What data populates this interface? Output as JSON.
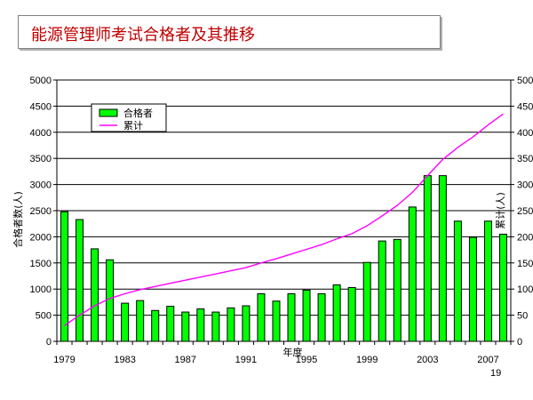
{
  "slide": {
    "title": "能源管理师考试合格者及其推移",
    "page_number": "19"
  },
  "colors": {
    "bar_fill": "#00ff00",
    "bar_stroke": "#000000",
    "line": "#ff00ff",
    "title_text": "#c00000"
  },
  "chart_data": {
    "type": "bar",
    "title": "",
    "xlabel": "年度",
    "ylabel": "合格者数(人)",
    "y2label": "累计(人)",
    "ylim": [
      0,
      5000
    ],
    "y2lim": [
      0,
      500
    ],
    "yticks": [
      0,
      500,
      1000,
      1500,
      2000,
      2500,
      3000,
      3500,
      4000,
      4500,
      5000
    ],
    "y2ticks": [
      0,
      50,
      100,
      150,
      200,
      250,
      300,
      350,
      400,
      450,
      500
    ],
    "grid": true,
    "legend_position": "top-left",
    "categories": [
      1979,
      1980,
      1981,
      1982,
      1983,
      1984,
      1985,
      1986,
      1987,
      1988,
      1989,
      1990,
      1991,
      1992,
      1993,
      1994,
      1995,
      1996,
      1997,
      1998,
      1999,
      2000,
      2001,
      2002,
      2003,
      2004,
      2005,
      2006,
      2007,
      2008
    ],
    "x_tick_labels": [
      "1979",
      "1983",
      "1987",
      "1991",
      "1995",
      "1999",
      "2003",
      "2007"
    ],
    "series": [
      {
        "name": "合格者",
        "type": "bar",
        "axis": "left",
        "values": [
          2480,
          2330,
          1770,
          1560,
          730,
          780,
          590,
          670,
          560,
          620,
          560,
          640,
          680,
          910,
          770,
          910,
          980,
          910,
          1080,
          1030,
          1510,
          1920,
          1950,
          2570,
          3170,
          3170,
          2300,
          1990,
          2300,
          2050
        ]
      },
      {
        "name": "累计",
        "type": "line",
        "axis": "right",
        "values": [
          30,
          50,
          68,
          82,
          91,
          99,
          105,
          111,
          117,
          123,
          129,
          135,
          141,
          150,
          158,
          167,
          176,
          185,
          196,
          206,
          221,
          240,
          260,
          285,
          317,
          348,
          371,
          391,
          414,
          435
        ]
      }
    ]
  }
}
